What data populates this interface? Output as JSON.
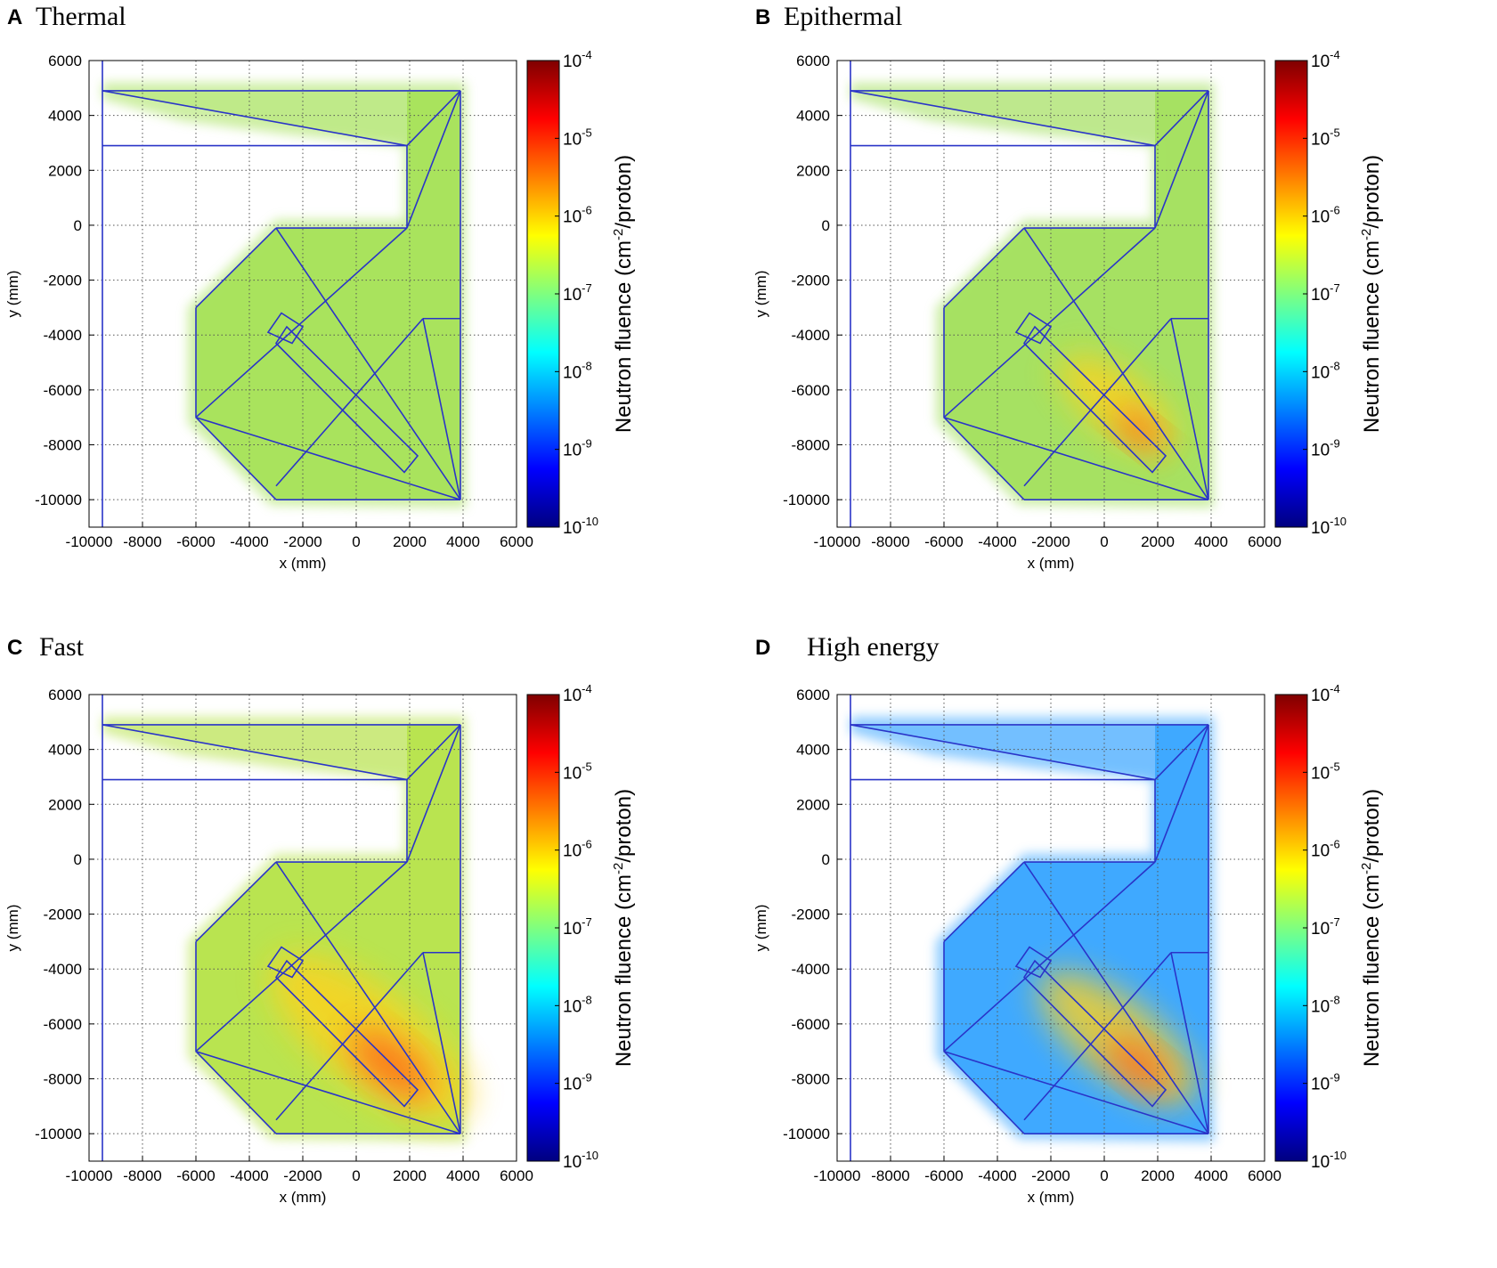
{
  "chart_data": [
    {
      "type": "heatmap",
      "panel": "A",
      "title": "Thermal",
      "xlabel": "x (mm)",
      "ylabel": "y (mm)",
      "xlim": [
        -10000,
        6000
      ],
      "ylim": [
        -11000,
        6000
      ],
      "xticks": [
        -10000,
        -8000,
        -6000,
        -4000,
        -2000,
        0,
        2000,
        4000,
        6000
      ],
      "yticks": [
        6000,
        4000,
        2000,
        0,
        -2000,
        -4000,
        -6000,
        -8000,
        -10000
      ],
      "grid": true,
      "colorbar": {
        "label": "Neutron fluence (cm",
        "label_exp": "-2",
        "label_tail": "/proton)",
        "log_min": -10,
        "log_max": -4,
        "tick_base": "10",
        "tick_exponents": [
          "-4",
          "-5",
          "-6",
          "-7",
          "-8",
          "-9",
          "-10"
        ]
      },
      "hotspot_intensity": 0.05
    },
    {
      "type": "heatmap",
      "panel": "B",
      "title": "Epithermal",
      "xlabel": "x (mm)",
      "ylabel": "y (mm)",
      "xlim": [
        -10000,
        6000
      ],
      "ylim": [
        -11000,
        6000
      ],
      "xticks": [
        -10000,
        -8000,
        -6000,
        -4000,
        -2000,
        0,
        2000,
        4000,
        6000
      ],
      "yticks": [
        6000,
        4000,
        2000,
        0,
        -2000,
        -4000,
        -6000,
        -8000,
        -10000
      ],
      "grid": true,
      "colorbar": {
        "label": "Neutron fluence (cm",
        "label_exp": "-2",
        "label_tail": "/proton)",
        "log_min": -10,
        "log_max": -4,
        "tick_base": "10",
        "tick_exponents": [
          "-4",
          "-5",
          "-6",
          "-7",
          "-8",
          "-9",
          "-10"
        ]
      },
      "hotspot_intensity": 0.35
    },
    {
      "type": "heatmap",
      "panel": "C",
      "title": "Fast",
      "xlabel": "x (mm)",
      "ylabel": "y (mm)",
      "xlim": [
        -10000,
        6000
      ],
      "ylim": [
        -11000,
        6000
      ],
      "xticks": [
        -10000,
        -8000,
        -6000,
        -4000,
        -2000,
        0,
        2000,
        4000,
        6000
      ],
      "yticks": [
        6000,
        4000,
        2000,
        0,
        -2000,
        -4000,
        -6000,
        -8000,
        -10000
      ],
      "grid": true,
      "colorbar": {
        "label": "Neutron fluence (cm",
        "label_exp": "-2",
        "label_tail": "/proton)",
        "log_min": -10,
        "log_max": -4,
        "tick_base": "10",
        "tick_exponents": [
          "-4",
          "-5",
          "-6",
          "-7",
          "-8",
          "-9",
          "-10"
        ]
      },
      "hotspot_intensity": 0.75
    },
    {
      "type": "heatmap",
      "panel": "D",
      "title": "High energy",
      "xlabel": "x (mm)",
      "ylabel": "y (mm)",
      "xlim": [
        -10000,
        6000
      ],
      "ylim": [
        -11000,
        6000
      ],
      "xticks": [
        -10000,
        -8000,
        -6000,
        -4000,
        -2000,
        0,
        2000,
        4000,
        6000
      ],
      "yticks": [
        6000,
        4000,
        2000,
        0,
        -2000,
        -4000,
        -6000,
        -8000,
        -10000
      ],
      "grid": true,
      "colorbar": {
        "label": "Neutron fluence (cm",
        "label_exp": "-2",
        "label_tail": "/proton)",
        "log_min": -10,
        "log_max": -4,
        "tick_base": "10",
        "tick_exponents": [
          "-4",
          "-5",
          "-6",
          "-7",
          "-8",
          "-9",
          "-10"
        ]
      },
      "hotspot_intensity": 0.55
    }
  ],
  "colors": {
    "geometry_line": "#2a34c8",
    "colormap_jet": [
      "#00007f",
      "#0000ff",
      "#007fff",
      "#00ffff",
      "#7fff7f",
      "#ffff00",
      "#ff7f00",
      "#ff0000",
      "#7f0000"
    ],
    "field_thermal": "#a6e25a",
    "field_epithermal": "#a3e05e",
    "field_fast": "#b7e34c",
    "field_high_energy": "#3aa6ff"
  }
}
